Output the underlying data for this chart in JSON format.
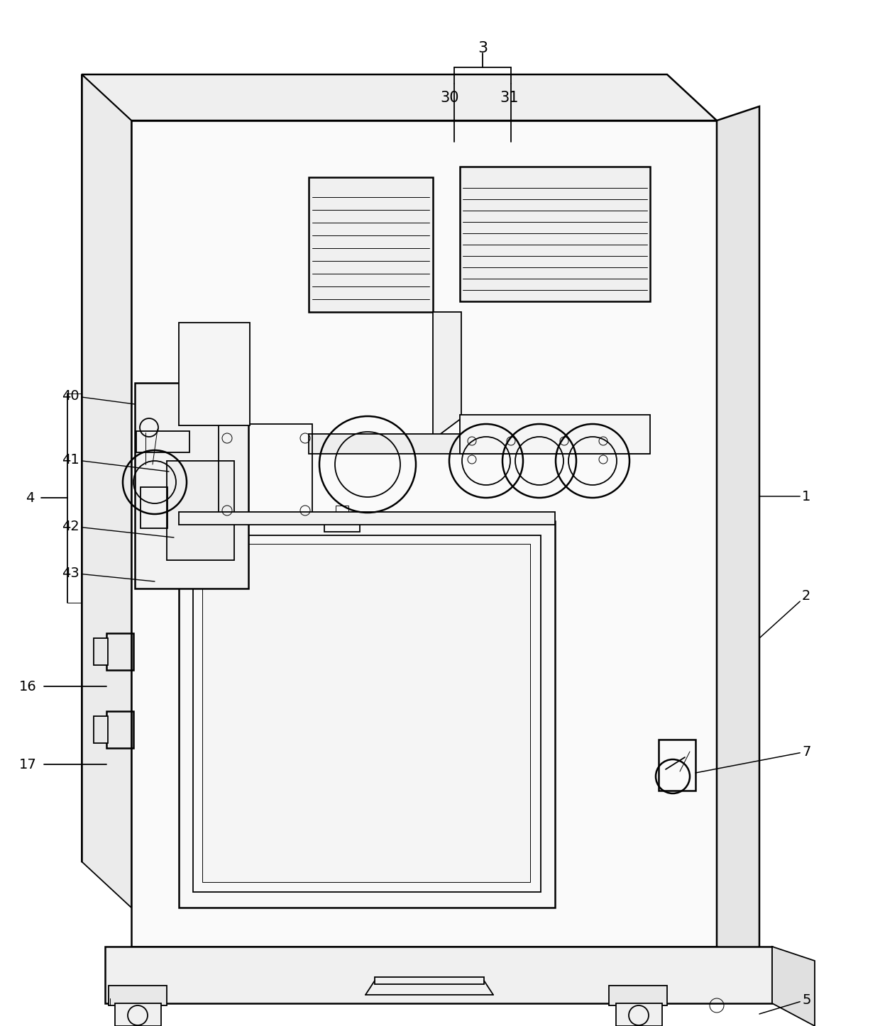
{
  "bg_color": "#ffffff",
  "line_color": "#000000",
  "lw": 1.3,
  "lw2": 1.8,
  "lw3": 0.7,
  "fig_w": 12.4,
  "fig_h": 14.47,
  "dpi": 100,
  "label_fontsize": 14
}
